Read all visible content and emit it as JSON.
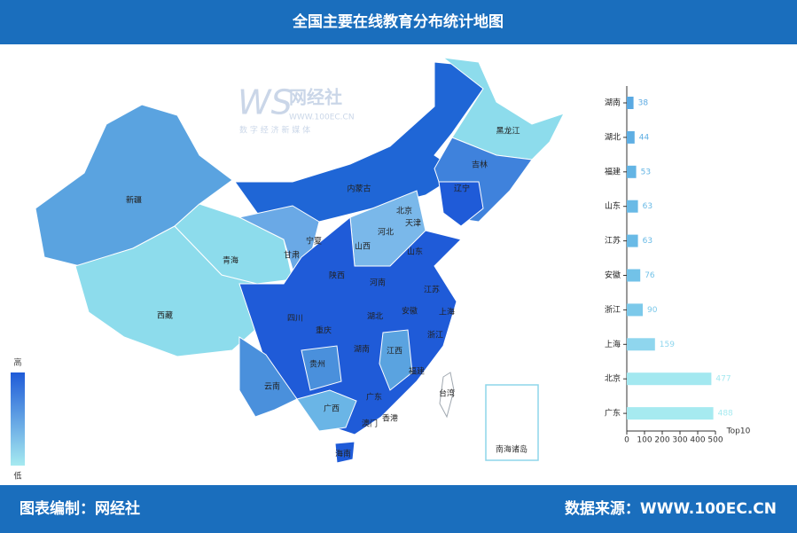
{
  "header": {
    "title": "全国主要在线教育分布统计地图"
  },
  "watermark": {
    "mark": "WS",
    "name": "网经社",
    "url": "WWW.100EC.CN",
    "tagline": "数 字 经 济 新 媒 体"
  },
  "map": {
    "labels": [
      "黑龙江",
      "吉林",
      "辽宁",
      "内蒙古",
      "北京",
      "天津",
      "河北",
      "山西",
      "宁夏",
      "甘肃",
      "青海",
      "新疆",
      "西藏",
      "山东",
      "陕西",
      "河南",
      "江苏",
      "安徽",
      "上海",
      "湖北",
      "四川",
      "重庆",
      "浙江",
      "湖南",
      "江西",
      "贵州",
      "福建",
      "云南",
      "广西",
      "广东",
      "台湾",
      "香港",
      "澳门",
      "海南"
    ],
    "inset": "南海诸岛",
    "legend": {
      "high": "高",
      "low": "低"
    }
  },
  "chart_data": {
    "type": "bar",
    "orientation": "horizontal",
    "categories": [
      "湖南",
      "湖北",
      "福建",
      "山东",
      "江苏",
      "安徽",
      "浙江",
      "上海",
      "北京",
      "广东"
    ],
    "values": [
      38,
      44,
      53,
      63,
      63,
      76,
      90,
      159,
      477,
      488
    ],
    "colors": [
      "#5aa9e2",
      "#5eaee3",
      "#63b4e4",
      "#69bae6",
      "#69bae6",
      "#72c2e8",
      "#7cc9ea",
      "#8fd6ee",
      "#a3e8f0",
      "#a6eaf0"
    ],
    "xlim": [
      0,
      500
    ],
    "xticks": [
      0,
      100,
      200,
      300,
      400,
      500
    ],
    "x_label": "Top10"
  },
  "footer": {
    "left": "图表编制：网经社",
    "right": "数据来源：WWW.100EC.CN"
  }
}
